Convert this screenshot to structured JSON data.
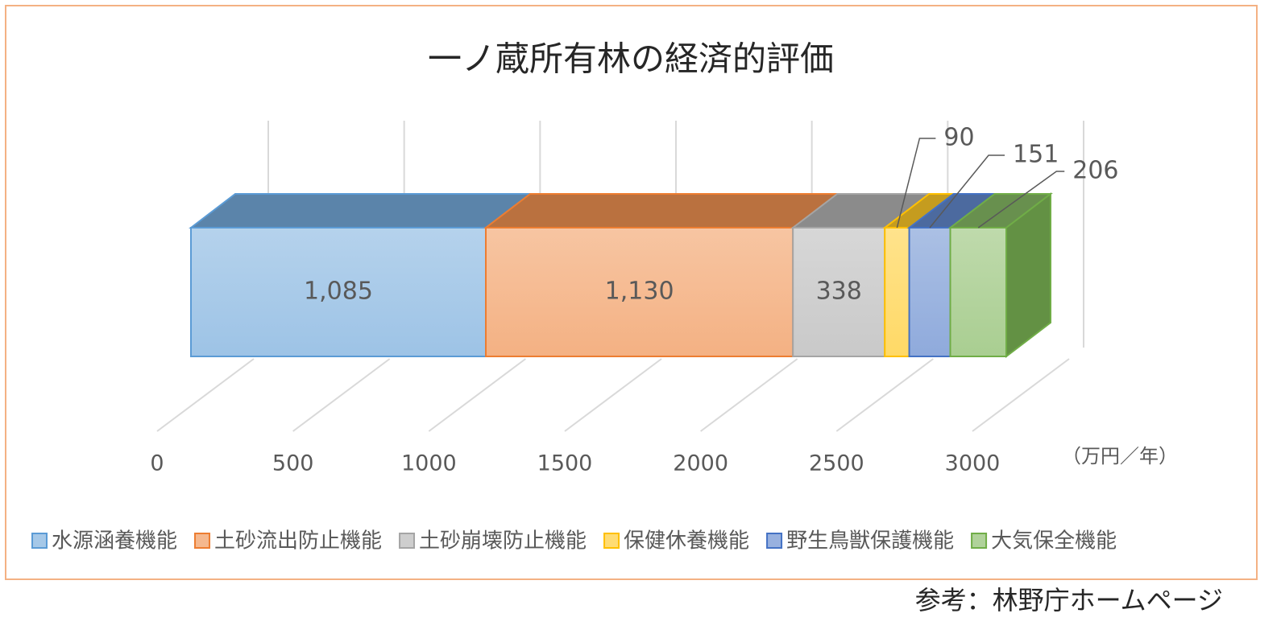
{
  "chart_data": {
    "type": "stacked-bar-3d",
    "title": "一ノ蔵所有林の経済的評価",
    "categories": [
      null
    ],
    "series": [
      {
        "name": "水源涵養機能",
        "color": "#5b9bd5",
        "values": [
          1085
        ],
        "value_labels": [
          "1,085"
        ]
      },
      {
        "name": "土砂流出防止機能",
        "color": "#ed7d31",
        "values": [
          1130
        ],
        "value_labels": [
          "1,130"
        ]
      },
      {
        "name": "土砂崩壊防止機能",
        "color": "#a5a5a5",
        "values": [
          338
        ]
      },
      {
        "name": "保健休養機能",
        "color": "#ffc000",
        "values": [
          90
        ]
      },
      {
        "name": "野生鳥獣保護機能",
        "color": "#4472c4",
        "values": [
          151
        ]
      },
      {
        "name": "大気保全機能",
        "color": "#70ad47",
        "values": [
          206
        ]
      }
    ],
    "xlim": [
      0,
      3000
    ],
    "xticks": [
      0,
      500,
      1000,
      1500,
      2000,
      2500,
      3000
    ],
    "xlabel": "（万円／年）",
    "grid": true,
    "legend": "bottom",
    "source": "参考：林野庁ホームページ"
  }
}
